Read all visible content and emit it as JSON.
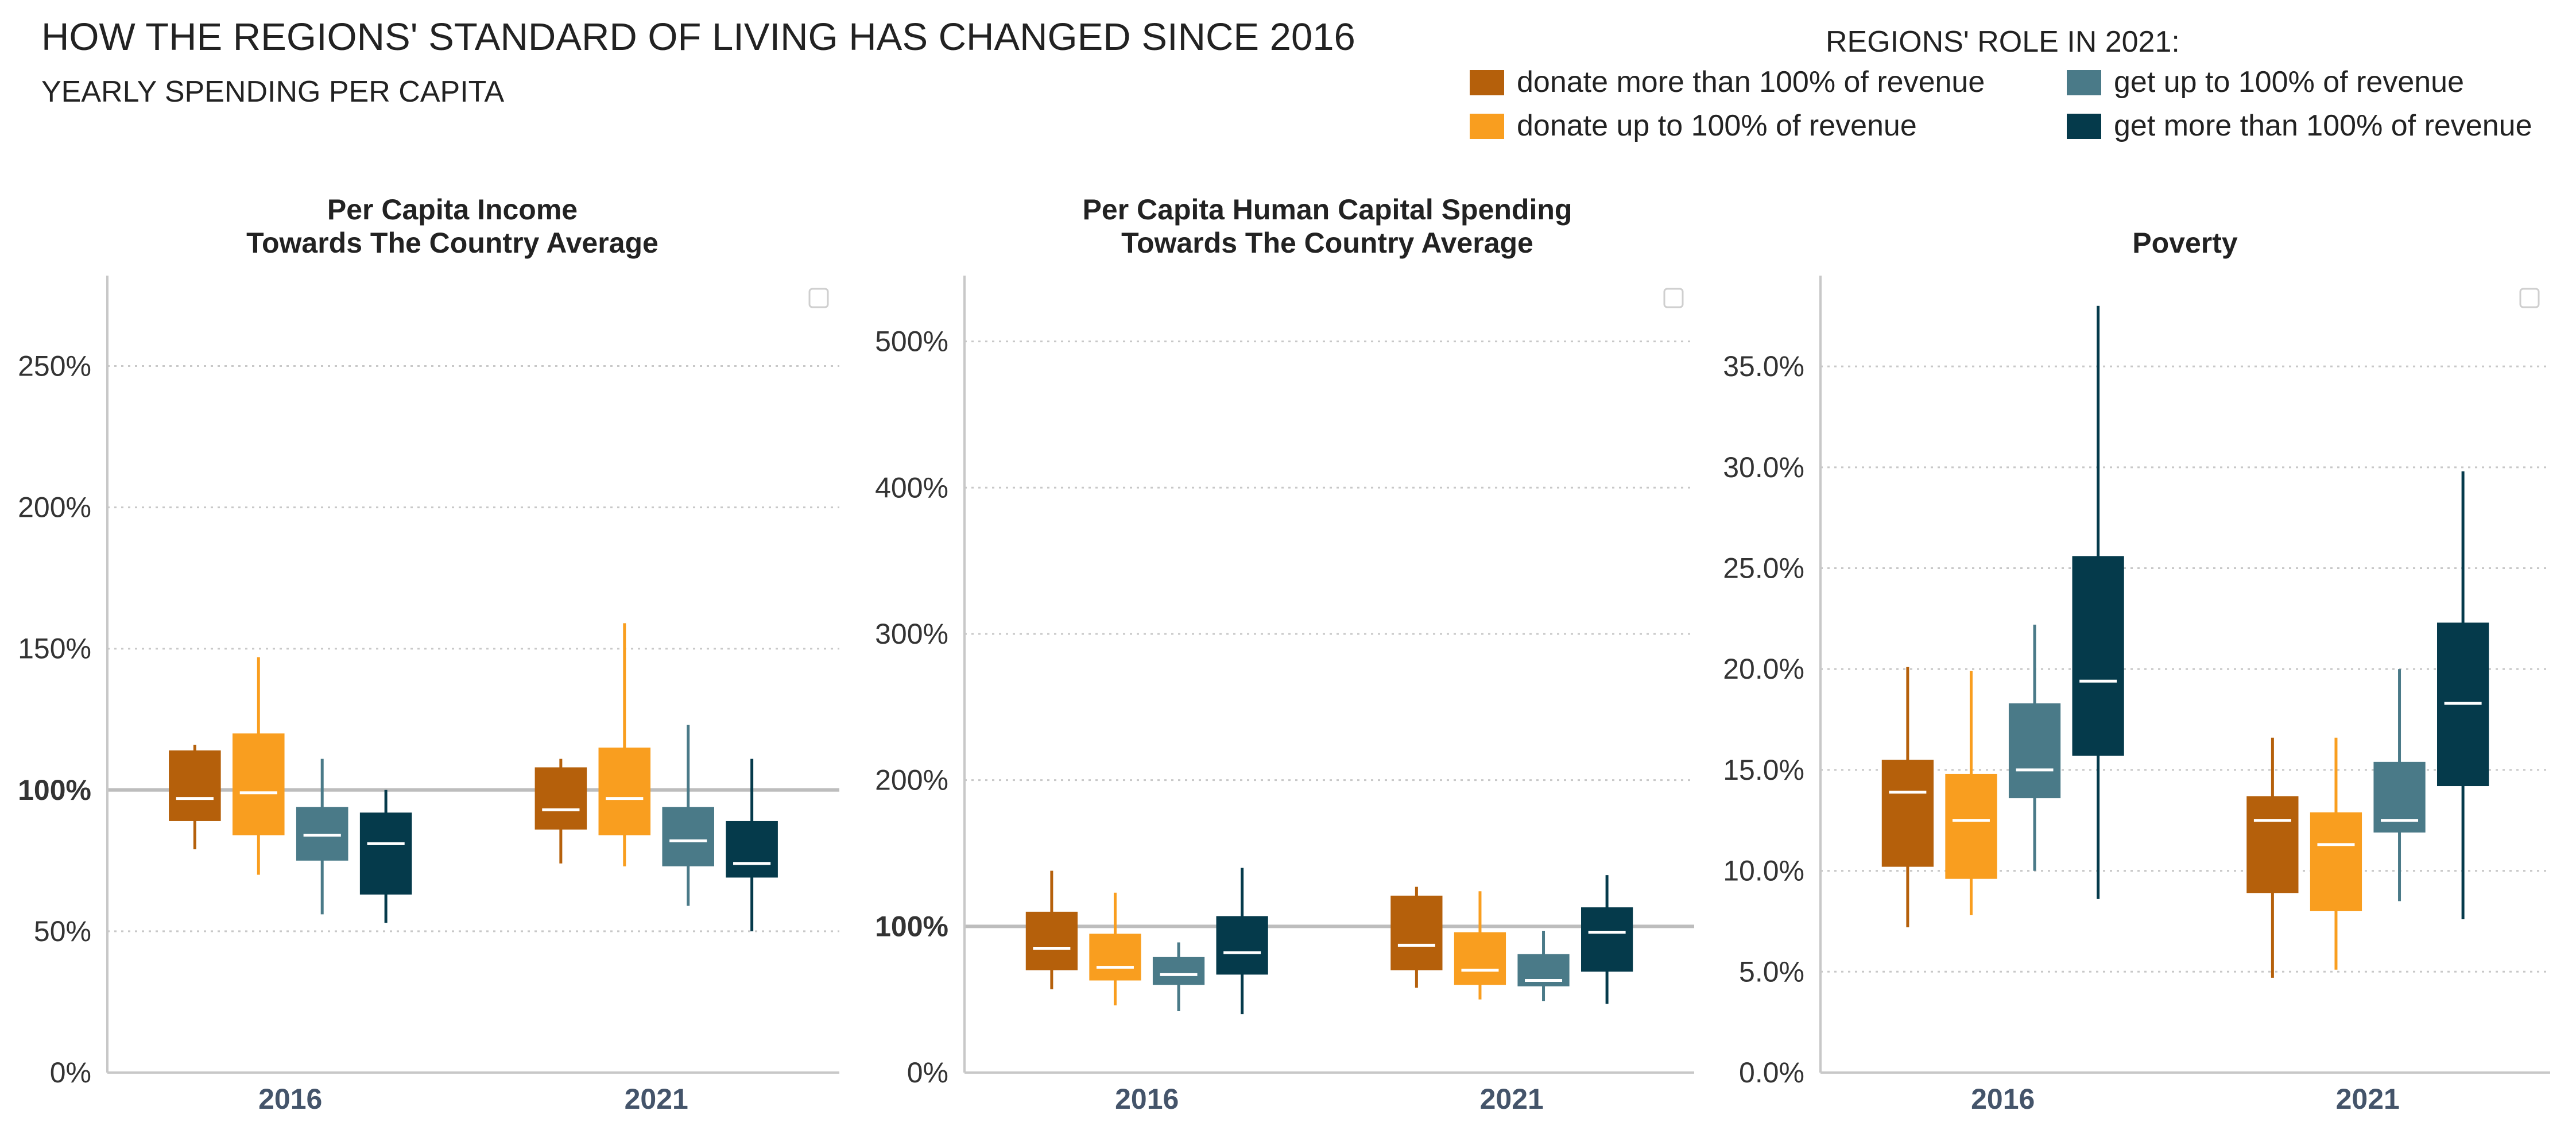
{
  "header": {
    "title": "HOW THE REGIONS' STANDARD OF LIVING HAS CHANGED SINCE 2016",
    "subtitle": "YEARLY SPENDING PER CAPITA"
  },
  "legend": {
    "title": "REGIONS' ROLE IN 2021:",
    "placement": "top-right",
    "items": [
      {
        "label": "donate more than 100% of revenue",
        "color": "#B5600B"
      },
      {
        "label": "donate up to 100% of revenue",
        "color": "#F99E1F"
      },
      {
        "label": "get up to 100% of revenue",
        "color": "#4A7A88"
      },
      {
        "label": "get more than 100% of revenue",
        "color": "#053A4B"
      }
    ]
  },
  "colors": {
    "axis": "#c8c8c8",
    "grid": "#c8c8c8",
    "reference_line": "#bdbdbd",
    "tick_text": "#333333",
    "category_text": "#44546a",
    "median": "#ffffff"
  },
  "chart_data": [
    {
      "type": "box",
      "title": "Per Capita Income\nTowards The Country Average",
      "xlabel": "",
      "ylabel": "",
      "ylim": [
        0,
        2.82
      ],
      "yticks": [
        0,
        0.5,
        1.0,
        1.5,
        2.0,
        2.5
      ],
      "yticklabels": [
        "0%",
        "50%",
        "100%",
        "150%",
        "200%",
        "250%"
      ],
      "highlight_tick": 1.0,
      "reference_line": 1.0,
      "grid": true,
      "categories": [
        "2016",
        "2021"
      ],
      "series": [
        {
          "name": "donate more than 100% of revenue",
          "color": "#B5600B",
          "boxes": [
            {
              "whislo": 0.79,
              "q1": 0.89,
              "med": 0.97,
              "q3": 1.14,
              "whishi": 1.16
            },
            {
              "whislo": 0.74,
              "q1": 0.86,
              "med": 0.93,
              "q3": 1.08,
              "whishi": 1.11
            }
          ]
        },
        {
          "name": "donate up to 100% of revenue",
          "color": "#F99E1F",
          "boxes": [
            {
              "whislo": 0.7,
              "q1": 0.84,
              "med": 0.99,
              "q3": 1.2,
              "whishi": 1.47
            },
            {
              "whislo": 0.73,
              "q1": 0.84,
              "med": 0.97,
              "q3": 1.15,
              "whishi": 1.59
            }
          ]
        },
        {
          "name": "get up to 100% of revenue",
          "color": "#4A7A88",
          "boxes": [
            {
              "whislo": 0.56,
              "q1": 0.75,
              "med": 0.84,
              "q3": 0.94,
              "whishi": 1.11
            },
            {
              "whislo": 0.59,
              "q1": 0.73,
              "med": 0.82,
              "q3": 0.94,
              "whishi": 1.23
            }
          ]
        },
        {
          "name": "get more than 100% of revenue",
          "color": "#053A4B",
          "boxes": [
            {
              "whislo": 0.53,
              "q1": 0.63,
              "med": 0.81,
              "q3": 0.92,
              "whishi": 1.0
            },
            {
              "whislo": 0.5,
              "q1": 0.69,
              "med": 0.74,
              "q3": 0.89,
              "whishi": 1.11
            }
          ]
        }
      ]
    },
    {
      "type": "box",
      "title": "Per Capita Human Capital Spending\nTowards The Country Average",
      "xlabel": "",
      "ylabel": "",
      "ylim": [
        0,
        5.45
      ],
      "yticks": [
        0,
        1,
        2,
        3,
        4,
        5
      ],
      "yticklabels": [
        "0%",
        "100%",
        "200%",
        "300%",
        "400%",
        "500%"
      ],
      "highlight_tick": 1.0,
      "reference_line": 1.0,
      "grid": true,
      "categories": [
        "2016",
        "2021"
      ],
      "series": [
        {
          "name": "donate more than 100% of revenue",
          "color": "#B5600B",
          "boxes": [
            {
              "whislo": 0.57,
              "q1": 0.7,
              "med": 0.85,
              "q3": 1.1,
              "whishi": 1.38
            },
            {
              "whislo": 0.58,
              "q1": 0.7,
              "med": 0.87,
              "q3": 1.21,
              "whishi": 1.27
            }
          ]
        },
        {
          "name": "donate up to 100% of revenue",
          "color": "#F99E1F",
          "boxes": [
            {
              "whislo": 0.46,
              "q1": 0.63,
              "med": 0.72,
              "q3": 0.95,
              "whishi": 1.23
            },
            {
              "whislo": 0.5,
              "q1": 0.6,
              "med": 0.7,
              "q3": 0.96,
              "whishi": 1.24
            }
          ]
        },
        {
          "name": "get up to 100% of revenue",
          "color": "#4A7A88",
          "boxes": [
            {
              "whislo": 0.42,
              "q1": 0.6,
              "med": 0.67,
              "q3": 0.79,
              "whishi": 0.89
            },
            {
              "whislo": 0.49,
              "q1": 0.59,
              "med": 0.63,
              "q3": 0.81,
              "whishi": 0.97
            }
          ]
        },
        {
          "name": "get more than 100% of revenue",
          "color": "#053A4B",
          "boxes": [
            {
              "whislo": 0.4,
              "q1": 0.67,
              "med": 0.82,
              "q3": 1.07,
              "whishi": 1.4
            },
            {
              "whislo": 0.47,
              "q1": 0.69,
              "med": 0.96,
              "q3": 1.13,
              "whishi": 1.35
            }
          ]
        }
      ]
    },
    {
      "type": "box",
      "title": "Poverty",
      "xlabel": "",
      "ylabel": "",
      "ylim": [
        0,
        0.395
      ],
      "yticks": [
        0,
        0.05,
        0.1,
        0.15,
        0.2,
        0.25,
        0.3,
        0.35
      ],
      "yticklabels": [
        "0.0%",
        "5.0%",
        "10.0%",
        "15.0%",
        "20.0%",
        "25.0%",
        "30.0%",
        "35.0%"
      ],
      "highlight_tick": null,
      "reference_line": null,
      "grid": true,
      "categories": [
        "2016",
        "2021"
      ],
      "series": [
        {
          "name": "donate more than 100% of revenue",
          "color": "#B5600B",
          "boxes": [
            {
              "whislo": 0.072,
              "q1": 0.102,
              "med": 0.139,
              "q3": 0.155,
              "whishi": 0.201
            },
            {
              "whislo": 0.047,
              "q1": 0.089,
              "med": 0.125,
              "q3": 0.137,
              "whishi": 0.166
            }
          ]
        },
        {
          "name": "donate up to 100% of revenue",
          "color": "#F99E1F",
          "boxes": [
            {
              "whislo": 0.078,
              "q1": 0.096,
              "med": 0.125,
              "q3": 0.148,
              "whishi": 0.199
            },
            {
              "whislo": 0.051,
              "q1": 0.08,
              "med": 0.113,
              "q3": 0.129,
              "whishi": 0.166
            }
          ]
        },
        {
          "name": "get up to 100% of revenue",
          "color": "#4A7A88",
          "boxes": [
            {
              "whislo": 0.1,
              "q1": 0.136,
              "med": 0.15,
              "q3": 0.183,
              "whishi": 0.222
            },
            {
              "whislo": 0.085,
              "q1": 0.119,
              "med": 0.125,
              "q3": 0.154,
              "whishi": 0.2
            }
          ]
        },
        {
          "name": "get more than 100% of revenue",
          "color": "#053A4B",
          "boxes": [
            {
              "whislo": 0.086,
              "q1": 0.157,
              "med": 0.194,
              "q3": 0.256,
              "whishi": 0.38
            },
            {
              "whislo": 0.076,
              "q1": 0.142,
              "med": 0.183,
              "q3": 0.223,
              "whishi": 0.298
            }
          ]
        }
      ]
    }
  ]
}
